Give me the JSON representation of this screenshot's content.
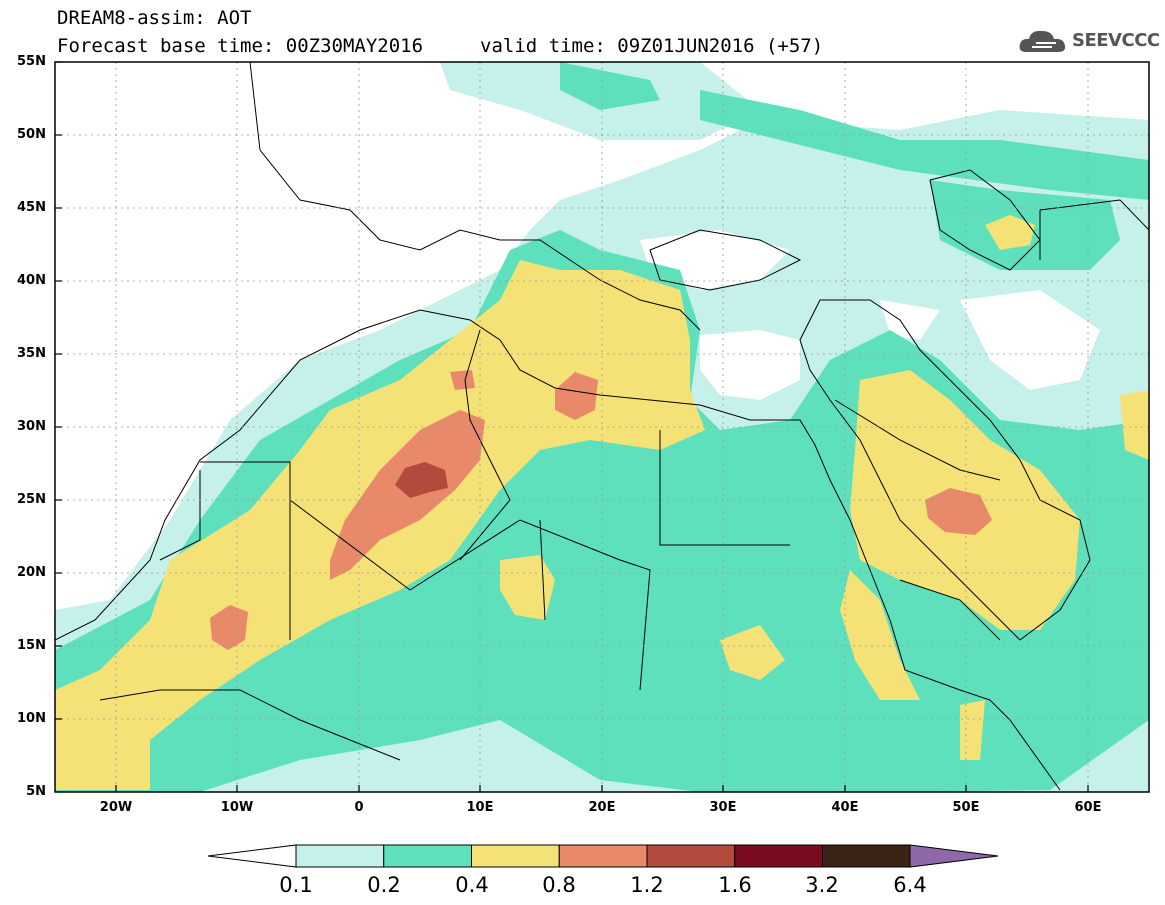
{
  "title": {
    "model": "DREAM8-assim: AOT",
    "base_time": "Forecast base time: 00Z30MAY2016",
    "valid_time": "valid time: 09Z01JUN2016 (+57)"
  },
  "logo": {
    "text": "SEEVCCC",
    "icon": "cloud-logo-icon"
  },
  "map": {
    "lat_labels": [
      "55N",
      "50N",
      "45N",
      "40N",
      "35N",
      "30N",
      "25N",
      "20N",
      "15N",
      "10N",
      "5N"
    ],
    "lon_labels": [
      "20W",
      "10W",
      "0",
      "10E",
      "20E",
      "30E",
      "40E",
      "50E",
      "60E"
    ],
    "lat_range": [
      5,
      55
    ],
    "lon_range": [
      -25,
      65
    ],
    "grid": "dashed"
  },
  "colorbar": {
    "levels": [
      "0.1",
      "0.2",
      "0.4",
      "0.8",
      "1.2",
      "1.6",
      "3.2",
      "6.4"
    ],
    "colors": [
      "#ffffff",
      "#c6f0ea",
      "#5ee0bc",
      "#f4e276",
      "#e8896a",
      "#b24b3e",
      "#7a0a1e",
      "#3b2415",
      "#8e69a8"
    ],
    "under_color": "#ffffff",
    "over_color": "#8e69a8"
  }
}
